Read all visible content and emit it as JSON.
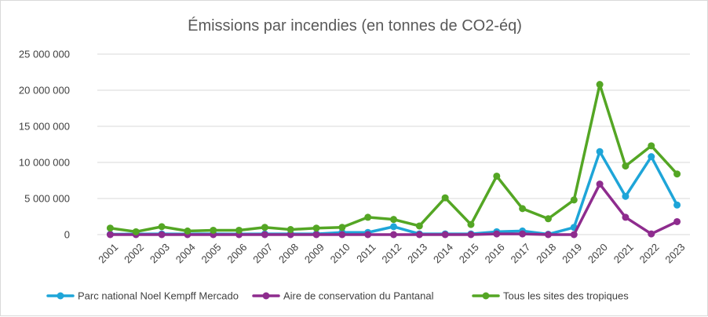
{
  "chart_data": {
    "type": "line",
    "title": "Émissions par incendies (en tonnes de CO2-éq)",
    "xlabel": "",
    "ylabel": "",
    "ylim": [
      0,
      25000000
    ],
    "yticks": [
      0,
      5000000,
      10000000,
      15000000,
      20000000,
      25000000
    ],
    "ytick_labels": [
      "0",
      "5 000 000",
      "10 000 000",
      "15 000 000",
      "20 000 000",
      "25 000 000"
    ],
    "grid": true,
    "legend_position": "bottom",
    "categories": [
      "2001",
      "2002",
      "2003",
      "2004",
      "2005",
      "2006",
      "2007",
      "2008",
      "2009",
      "2010",
      "2011",
      "2012",
      "2013",
      "2014",
      "2015",
      "2016",
      "2017",
      "2018",
      "2019",
      "2020",
      "2021",
      "2022",
      "2023"
    ],
    "series": [
      {
        "name": "Parc national Noel Kempff Mercado",
        "color": "#1ea5d8",
        "values": [
          50000,
          80000,
          100000,
          80000,
          100000,
          80000,
          100000,
          100000,
          100000,
          300000,
          300000,
          1100000,
          100000,
          100000,
          100000,
          400000,
          500000,
          50000,
          1000000,
          11500000,
          5300000,
          10800000,
          4100000
        ]
      },
      {
        "name": "Aire de conservation du Pantanal",
        "color": "#8e2c8e",
        "values": [
          0,
          0,
          0,
          0,
          0,
          0,
          0,
          0,
          0,
          0,
          0,
          0,
          0,
          0,
          0,
          100000,
          100000,
          0,
          0,
          7000000,
          2400000,
          100000,
          1800000
        ]
      },
      {
        "name": "Tous les sites des tropiques",
        "color": "#54a624",
        "values": [
          900000,
          400000,
          1100000,
          500000,
          600000,
          600000,
          1000000,
          700000,
          900000,
          1000000,
          2400000,
          2100000,
          1200000,
          5100000,
          1400000,
          8100000,
          3600000,
          2200000,
          4800000,
          20800000,
          9500000,
          12300000,
          8400000
        ]
      }
    ]
  }
}
